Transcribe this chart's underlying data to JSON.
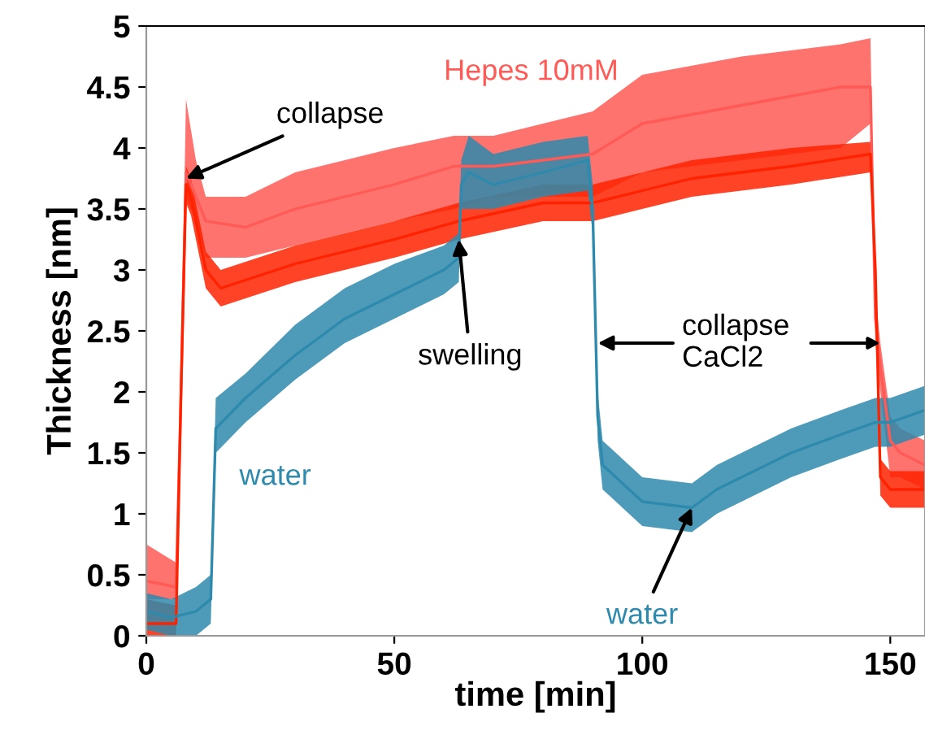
{
  "chart_data": {
    "type": "line",
    "xlabel": "time [min]",
    "ylabel": "Thickness [nm]",
    "xlim": [
      0,
      157
    ],
    "ylim": [
      0,
      5
    ],
    "xticks": [
      0,
      50,
      100,
      150
    ],
    "yticks": [
      0,
      0.5,
      1,
      1.5,
      2,
      2.5,
      3,
      3.5,
      4,
      4.5,
      5
    ],
    "grid": false,
    "marker": "none",
    "line_style": "solid",
    "series": [
      {
        "name": "Hepes 10mM",
        "color": "#ff5a55",
        "x": [
          0,
          6,
          7,
          8,
          10,
          12,
          20,
          30,
          50,
          62,
          70,
          80,
          90,
          100,
          120,
          140,
          146,
          147,
          148,
          150,
          152,
          157
        ],
        "values": [
          0.45,
          0.4,
          2.0,
          3.8,
          3.6,
          3.4,
          3.35,
          3.5,
          3.7,
          3.85,
          3.85,
          3.9,
          3.95,
          4.2,
          4.35,
          4.5,
          4.5,
          2.6,
          2.2,
          1.6,
          1.5,
          1.4
        ],
        "lower": [
          0.3,
          0.3,
          1.8,
          3.6,
          3.4,
          3.1,
          3.1,
          3.2,
          3.4,
          3.5,
          3.6,
          3.6,
          3.6,
          3.8,
          3.9,
          4.0,
          4.2,
          2.4,
          2.0,
          1.3,
          1.3,
          1.2
        ],
        "upper": [
          0.75,
          0.6,
          2.2,
          4.4,
          3.9,
          3.6,
          3.6,
          3.8,
          4.0,
          4.1,
          4.1,
          4.2,
          4.3,
          4.6,
          4.75,
          4.85,
          4.9,
          2.8,
          2.4,
          1.8,
          1.7,
          1.6
        ]
      },
      {
        "color": "#ff2200",
        "x": [
          0,
          6,
          7,
          8,
          9,
          12,
          15,
          30,
          50,
          63,
          80,
          90,
          100,
          110,
          130,
          146,
          147,
          148,
          150,
          157
        ],
        "values": [
          0.1,
          0.1,
          2.0,
          3.7,
          3.6,
          3.0,
          2.85,
          3.05,
          3.25,
          3.4,
          3.55,
          3.55,
          3.65,
          3.75,
          3.85,
          3.95,
          3.0,
          1.3,
          1.2,
          1.2
        ],
        "lower": [
          0.0,
          0.0,
          1.9,
          3.55,
          3.45,
          2.85,
          2.7,
          2.9,
          3.1,
          3.25,
          3.4,
          3.4,
          3.5,
          3.6,
          3.7,
          3.8,
          2.9,
          1.15,
          1.05,
          1.05
        ],
        "upper": [
          0.3,
          0.25,
          2.1,
          3.85,
          3.75,
          3.15,
          3.0,
          3.2,
          3.4,
          3.55,
          3.7,
          3.7,
          3.8,
          3.9,
          4.0,
          4.05,
          3.1,
          1.45,
          1.35,
          1.35
        ]
      },
      {
        "name": "water",
        "color": "#2e8aad",
        "x": [
          0,
          5,
          10,
          13,
          13.5,
          14,
          20,
          30,
          40,
          50,
          60,
          63,
          63.5,
          65,
          70,
          80,
          89,
          90,
          91,
          92,
          100,
          110,
          115,
          130,
          140,
          147,
          150,
          157
        ],
        "values": [
          0.2,
          0.15,
          0.2,
          0.3,
          1.0,
          1.7,
          1.95,
          2.3,
          2.6,
          2.8,
          3.0,
          3.1,
          3.7,
          3.8,
          3.7,
          3.8,
          3.9,
          3.5,
          1.8,
          1.4,
          1.1,
          1.05,
          1.2,
          1.5,
          1.65,
          1.75,
          1.75,
          1.85
        ],
        "lower": [
          0.05,
          0.0,
          0.0,
          0.1,
          0.8,
          1.5,
          1.75,
          2.1,
          2.4,
          2.6,
          2.8,
          2.9,
          3.5,
          3.5,
          3.5,
          3.6,
          3.65,
          3.3,
          1.6,
          1.2,
          0.9,
          0.85,
          1.0,
          1.3,
          1.45,
          1.55,
          1.55,
          1.65
        ],
        "upper": [
          0.35,
          0.3,
          0.4,
          0.5,
          1.2,
          1.95,
          2.15,
          2.55,
          2.85,
          3.05,
          3.2,
          3.3,
          3.9,
          4.1,
          3.95,
          4.05,
          4.1,
          3.7,
          2.0,
          1.6,
          1.3,
          1.25,
          1.4,
          1.7,
          1.85,
          1.95,
          1.95,
          2.05
        ]
      }
    ],
    "annotations": [
      {
        "text": "collapse",
        "x": 8,
        "y": 3.75
      },
      {
        "text": "swelling",
        "x": 63,
        "y": 3.25
      },
      {
        "text": "collapse\nCaCl2",
        "x": 91,
        "y": 2.4
      },
      {
        "text": "water",
        "x": 110,
        "y": 1.05
      }
    ]
  }
}
